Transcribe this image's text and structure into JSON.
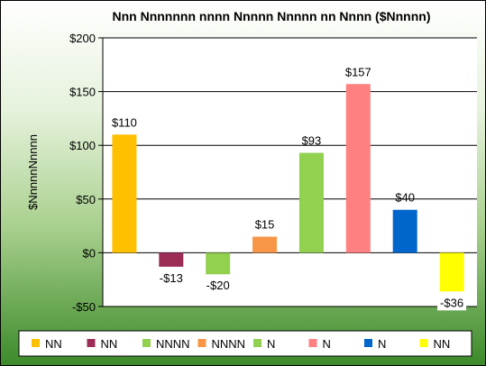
{
  "chart_data": {
    "type": "bar",
    "title": "Nnn Nnnnnnn nnnn Nnnnn Nnnnn nn Nnnn ($Nnnnn)",
    "ylabel": "$NnnnnNnnnn",
    "xlabel": "",
    "ylim": [
      -50,
      200
    ],
    "yticks": [
      -50,
      0,
      50,
      100,
      150,
      200
    ],
    "ytick_labels": [
      "-$50",
      "$0",
      "$50",
      "$100",
      "$150",
      "$200"
    ],
    "grid": true,
    "legend_position": "bottom",
    "categories": [
      "NN",
      "NN",
      "NNNN",
      "NNNN",
      "N",
      "N",
      "N",
      "NN"
    ],
    "values": [
      110,
      -13,
      -20,
      15,
      93,
      157,
      40,
      -36
    ],
    "data_labels": [
      "$110",
      "-$13",
      "-$20",
      "$15",
      "$93",
      "$157",
      "$40",
      "-$36"
    ],
    "colors": [
      "#ffc000",
      "#9b2d57",
      "#92d050",
      "#f79646",
      "#92d050",
      "#ff8080",
      "#0066cc",
      "#ffff00"
    ]
  }
}
